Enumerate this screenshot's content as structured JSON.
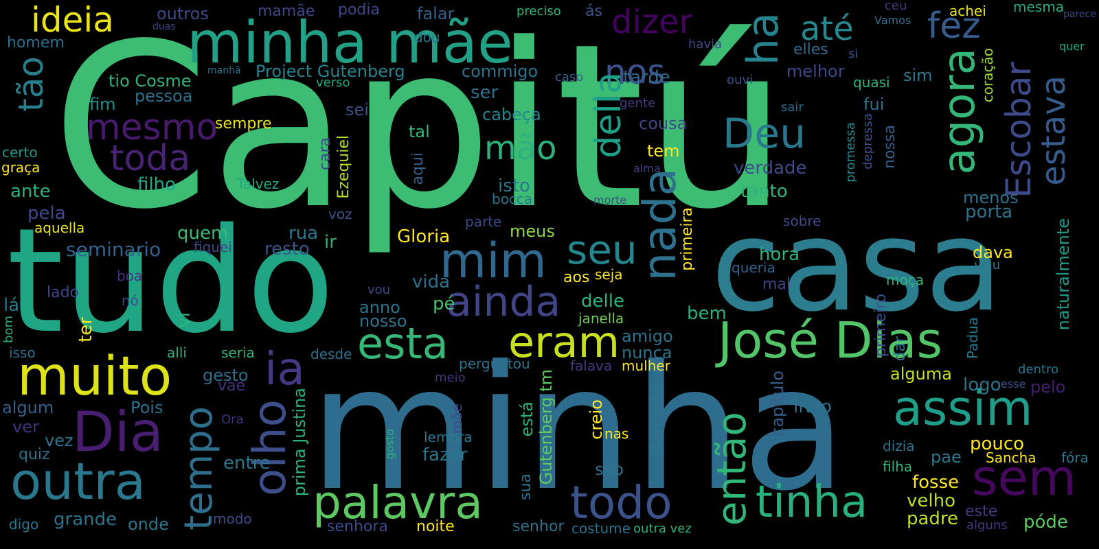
{
  "words": [
    {
      "text": "Capitú",
      "color": "#3dbc74"
    },
    {
      "text": "minha",
      "color": "#2f6d8e"
    },
    {
      "text": "tudo",
      "color": "#21a685"
    },
    {
      "text": "casa",
      "color": "#2c7e8e"
    },
    {
      "text": "minha mãe",
      "color": "#22a186"
    },
    {
      "text": "José Dias",
      "color": "#52c569"
    },
    {
      "text": "muito",
      "color": "#dde318"
    },
    {
      "text": "outra",
      "color": "#2a788e"
    },
    {
      "text": "Dia",
      "color": "#481f70"
    },
    {
      "text": "ideia",
      "color": "#eae51a"
    },
    {
      "text": "dizer",
      "color": "#44015f"
    },
    {
      "text": "até",
      "color": "#23898e"
    },
    {
      "text": "fez",
      "color": "#365c8d"
    },
    {
      "text": "nos",
      "color": "#3b528b"
    },
    {
      "text": "ha",
      "color": "#25848e"
    },
    {
      "text": "agora",
      "color": "#35b779"
    },
    {
      "text": "Escobar",
      "color": "#3e4a89"
    },
    {
      "text": "estava",
      "color": "#365c8d"
    },
    {
      "text": "mesmo",
      "color": "#481a6c"
    },
    {
      "text": "toda",
      "color": "#482374"
    },
    {
      "text": "Deu",
      "color": "#2a788e"
    },
    {
      "text": "mão",
      "color": "#2db27d"
    },
    {
      "text": "della",
      "color": "#1fa088"
    },
    {
      "text": "nada",
      "color": "#2d718e"
    },
    {
      "text": "mim",
      "color": "#31688e"
    },
    {
      "text": "seu",
      "color": "#24868e"
    },
    {
      "text": "ainda",
      "color": "#414487"
    },
    {
      "text": "esta",
      "color": "#37b878"
    },
    {
      "text": "eram",
      "color": "#c8e020"
    },
    {
      "text": "assim",
      "color": "#1f9e89"
    },
    {
      "text": "sem",
      "color": "#46085c"
    },
    {
      "text": "tinha",
      "color": "#2ab07f"
    },
    {
      "text": "então",
      "color": "#32b67a"
    },
    {
      "text": "todo",
      "color": "#3b528b"
    },
    {
      "text": "palavra",
      "color": "#5ec962"
    },
    {
      "text": "olho",
      "color": "#3d4e8a"
    },
    {
      "text": "tempo",
      "color": "#2e6f8e"
    },
    {
      "text": "ia",
      "color": "#443983"
    },
    {
      "text": "tão",
      "color": "#277f8e"
    },
    {
      "text": "outros",
      "color": "#3e4a89"
    },
    {
      "text": "mamãe",
      "color": "#3f4788"
    },
    {
      "text": "podia",
      "color": "#3f4788"
    },
    {
      "text": "falar",
      "color": "#33638d"
    },
    {
      "text": "preciso",
      "color": "#31b57b"
    },
    {
      "text": "ás",
      "color": "#3b528b"
    },
    {
      "text": "ceu",
      "color": "#453781"
    },
    {
      "text": "achei",
      "color": "#eae51a"
    },
    {
      "text": "mesma",
      "color": "#25ab82"
    },
    {
      "text": "parece",
      "color": "#3e4989"
    },
    {
      "text": "duas",
      "color": "#404588"
    },
    {
      "text": "Vamos",
      "color": "#2c728e"
    },
    {
      "text": "homem",
      "color": "#2c728e"
    },
    {
      "text": "dou",
      "color": "#2a768e"
    },
    {
      "text": "havia",
      "color": "#3f4889"
    },
    {
      "text": "elles",
      "color": "#31688e"
    },
    {
      "text": "si",
      "color": "#3b528b"
    },
    {
      "text": "quer",
      "color": "#22a785"
    },
    {
      "text": "manhã",
      "color": "#2a768e"
    },
    {
      "text": "Project Gutenberg",
      "color": "#25848e"
    },
    {
      "text": "commigo",
      "color": "#2c738e"
    },
    {
      "text": "caso",
      "color": "#35608d"
    },
    {
      "text": "tarde",
      "color": "#31688e"
    },
    {
      "text": "ouvi",
      "color": "#3b528b"
    },
    {
      "text": "melhor",
      "color": "#3f4788"
    },
    {
      "text": "quasi",
      "color": "#2fb47c"
    },
    {
      "text": "coração",
      "color": "#a0da39"
    },
    {
      "text": "sim",
      "color": "#2a788e"
    },
    {
      "text": "tio Cosme",
      "color": "#2fb47c"
    },
    {
      "text": "verso",
      "color": "#22a785"
    },
    {
      "text": "ser",
      "color": "#2c718e"
    },
    {
      "text": "pessoa",
      "color": "#2c728e"
    },
    {
      "text": "fim",
      "color": "#20928c"
    },
    {
      "text": "gente",
      "color": "#453882"
    },
    {
      "text": "sair",
      "color": "#2f6c8e"
    },
    {
      "text": "fui",
      "color": "#2e6e8e"
    },
    {
      "text": "sei",
      "color": "#3a548c"
    },
    {
      "text": "cabeça",
      "color": "#24878e"
    },
    {
      "text": "cousa",
      "color": "#3f4788"
    },
    {
      "text": "sempre",
      "color": "#eae51a"
    },
    {
      "text": "promessa",
      "color": "#24878e"
    },
    {
      "text": "depressa",
      "color": "#3b528b"
    },
    {
      "text": "nossa",
      "color": "#355f8d"
    },
    {
      "text": "certo",
      "color": "#1f9a8a"
    },
    {
      "text": "tal",
      "color": "#35b779"
    },
    {
      "text": "Ezequiel",
      "color": "#b8de29"
    },
    {
      "text": "cara",
      "color": "#3e4989"
    },
    {
      "text": "aqui",
      "color": "#33638d"
    },
    {
      "text": "tem",
      "color": "#fde725"
    },
    {
      "text": "verdade",
      "color": "#3e4a89"
    },
    {
      "text": "graça",
      "color": "#fde725"
    },
    {
      "text": "alma",
      "color": "#414487"
    },
    {
      "text": "filho",
      "color": "#22a884"
    },
    {
      "text": "Talvez",
      "color": "#22a884"
    },
    {
      "text": "isto",
      "color": "#2a788e"
    },
    {
      "text": "ante",
      "color": "#2db27d"
    },
    {
      "text": "tanto",
      "color": "#2fb47c"
    },
    {
      "text": "bocca",
      "color": "#2a768e"
    },
    {
      "text": "morte",
      "color": "#3e4a89"
    },
    {
      "text": "menos",
      "color": "#2c738e"
    },
    {
      "text": "pela",
      "color": "#3e4a89"
    },
    {
      "text": "porta",
      "color": "#2d708e"
    },
    {
      "text": "aquella",
      "color": "#eae51a"
    },
    {
      "text": "voz",
      "color": "#3b528b"
    },
    {
      "text": "parte",
      "color": "#3e4a89"
    },
    {
      "text": "sobre",
      "color": "#3e4989"
    },
    {
      "text": "quem",
      "color": "#3aba76"
    },
    {
      "text": "rua",
      "color": "#2a788e"
    },
    {
      "text": "meus",
      "color": "#8fd744"
    },
    {
      "text": "Gloria",
      "color": "#fde725"
    },
    {
      "text": "seminario",
      "color": "#33638d"
    },
    {
      "text": "fiquei",
      "color": "#3f4788"
    },
    {
      "text": "resto",
      "color": "#3a548c"
    },
    {
      "text": "ir",
      "color": "#2fb47c"
    },
    {
      "text": "primeira",
      "color": "#fde725"
    },
    {
      "text": "hora",
      "color": "#2fb47c"
    },
    {
      "text": "queria",
      "color": "#33638d"
    },
    {
      "text": "dava",
      "color": "#fde725"
    },
    {
      "text": "veiu",
      "color": "#2a788e"
    },
    {
      "text": "naturalmente",
      "color": "#1f9a8a"
    },
    {
      "text": "boa",
      "color": "#46327e"
    },
    {
      "text": "seja",
      "color": "#fde725"
    },
    {
      "text": "aos",
      "color": "#fde725"
    },
    {
      "text": "mal",
      "color": "#414487"
    },
    {
      "text": "moça",
      "color": "#2fb47c"
    },
    {
      "text": "vida",
      "color": "#2c728e"
    },
    {
      "text": "vou",
      "color": "#3e4a89"
    },
    {
      "text": "lado",
      "color": "#3e4989"
    },
    {
      "text": "nó",
      "color": "#3f4889"
    },
    {
      "text": "lá",
      "color": "#287c8e"
    },
    {
      "text": "delle",
      "color": "#2db27d"
    },
    {
      "text": "anno",
      "color": "#2c718e"
    },
    {
      "text": "pé",
      "color": "#44bf70"
    },
    {
      "text": "nosso",
      "color": "#2c738e"
    },
    {
      "text": "janella",
      "color": "#6ece58"
    },
    {
      "text": "bem",
      "color": "#2ab07f"
    },
    {
      "text": "vi",
      "color": "#2fb47c"
    },
    {
      "text": "ter",
      "color": "#fde725"
    },
    {
      "text": "amigo",
      "color": "#2c738e"
    },
    {
      "text": "primeiro",
      "color": "#3b528b"
    },
    {
      "text": "Padua",
      "color": "#2a788e"
    },
    {
      "text": "bom",
      "color": "#27ad81"
    },
    {
      "text": "nunca",
      "color": "#2c738e"
    },
    {
      "text": "isso",
      "color": "#2c728e"
    },
    {
      "text": "alli",
      "color": "#2fb47c"
    },
    {
      "text": "seria",
      "color": "#2fb47c"
    },
    {
      "text": "desde",
      "color": "#2c728e"
    },
    {
      "text": "dar",
      "color": "#2a768e"
    },
    {
      "text": "dentro",
      "color": "#2a788e"
    },
    {
      "text": "perguntou",
      "color": "#2c738e"
    },
    {
      "text": "falava",
      "color": "#453882"
    },
    {
      "text": "mulher",
      "color": "#fde725"
    },
    {
      "text": "gesto",
      "color": "#2f6c8e"
    },
    {
      "text": "alguma",
      "color": "#c2df23"
    },
    {
      "text": "meio",
      "color": "#46337e"
    },
    {
      "text": "logo",
      "color": "#2c738e"
    },
    {
      "text": "esse",
      "color": "#3b528b"
    },
    {
      "text": "pelo",
      "color": "#481f70"
    },
    {
      "text": "vae",
      "color": "#46327e"
    },
    {
      "text": "algum",
      "color": "#33638d"
    },
    {
      "text": "Pois",
      "color": "#2c738e"
    },
    {
      "text": "prima Justina",
      "color": "#2db27d"
    },
    {
      "text": "está",
      "color": "#2fb47c"
    },
    {
      "text": "Gutenberg tm",
      "color": "#5ec962"
    },
    {
      "text": "capitulo",
      "color": "#35608d"
    },
    {
      "text": "livro",
      "color": "#2c738e"
    },
    {
      "text": "ver",
      "color": "#46327e"
    },
    {
      "text": "Ora",
      "color": "#46327e"
    },
    {
      "text": "mãe",
      "color": "#3e4a89"
    },
    {
      "text": "vez",
      "color": "#2c738e"
    },
    {
      "text": "creio",
      "color": "#fde725"
    },
    {
      "text": "nas",
      "color": "#fde725"
    },
    {
      "text": "pouco",
      "color": "#fde725"
    },
    {
      "text": "lembra",
      "color": "#2a788e"
    },
    {
      "text": "quiz",
      "color": "#2c738e"
    },
    {
      "text": "gosto",
      "color": "#2fb47c"
    },
    {
      "text": "fazer",
      "color": "#2a768e"
    },
    {
      "text": "Bentinho",
      "color": "#2c738e"
    },
    {
      "text": "dizia",
      "color": "#2c738e"
    },
    {
      "text": "Sancha",
      "color": "#fde725"
    },
    {
      "text": "fóra",
      "color": "#2a788e"
    },
    {
      "text": "filha",
      "color": "#2fb47c"
    },
    {
      "text": "pae",
      "color": "#2a788e"
    },
    {
      "text": "entre",
      "color": "#2a788e"
    },
    {
      "text": "são",
      "color": "#2c738e"
    },
    {
      "text": "fosse",
      "color": "#fde725"
    },
    {
      "text": "sua",
      "color": "#2c738e"
    },
    {
      "text": "velho",
      "color": "#c2df23"
    },
    {
      "text": "padre",
      "color": "#c2df23"
    },
    {
      "text": "este",
      "color": "#453882"
    },
    {
      "text": "grande",
      "color": "#2c738e"
    },
    {
      "text": "onde",
      "color": "#2a768e"
    },
    {
      "text": "modo",
      "color": "#3e4a89"
    },
    {
      "text": "digo",
      "color": "#2a768e"
    },
    {
      "text": "senhora",
      "color": "#3e4a89"
    },
    {
      "text": "noite",
      "color": "#fde725"
    },
    {
      "text": "senhor",
      "color": "#2c738e"
    },
    {
      "text": "costume",
      "color": "#2c738e"
    },
    {
      "text": "outra vez",
      "color": "#2fb47c"
    },
    {
      "text": "alguns",
      "color": "#453882"
    },
    {
      "text": "póde",
      "color": "#5ec962"
    }
  ]
}
